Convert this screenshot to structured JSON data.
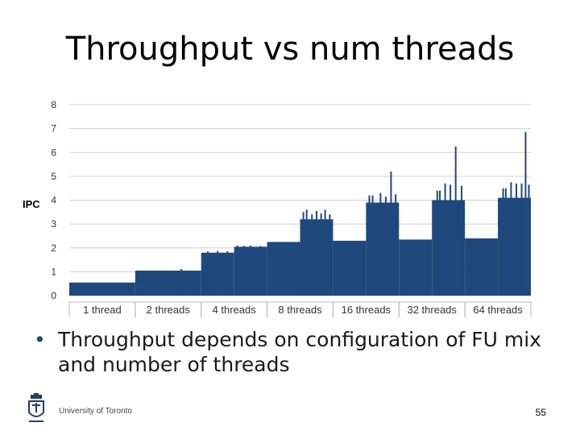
{
  "slide": {
    "title": "Throughput vs num threads",
    "bullet": "Throughput depends on configuration of FU mix and number of threads",
    "footer_org": "University of Toronto",
    "page_number": "55"
  },
  "colors": {
    "bar": "#1f497d",
    "grid": "#d0d0d0",
    "axis_text": "#333333",
    "category_border": "#b8b8b8"
  },
  "chart_data": {
    "type": "bar",
    "title": "",
    "ylabel": "IPC",
    "ylim": [
      0,
      8
    ],
    "yticks": [
      0,
      1,
      2,
      3,
      4,
      5,
      6,
      7,
      8
    ],
    "grid": true,
    "categories": [
      "1 thread",
      "2 threads",
      "4 threads",
      "8 threads",
      "16 threads",
      "32 threads",
      "64 threads"
    ],
    "series": [
      {
        "category": "1 thread",
        "segments": [
          [
            0.0,
            1.0,
            0.55
          ]
        ],
        "spikes": []
      },
      {
        "category": "2 threads",
        "segments": [
          [
            0.0,
            1.0,
            1.05
          ]
        ],
        "spikes": [
          [
            0.7,
            1.12
          ]
        ]
      },
      {
        "category": "4 threads",
        "segments": [
          [
            0.0,
            0.5,
            1.8
          ],
          [
            0.5,
            1.0,
            2.05
          ]
        ],
        "spikes": [
          [
            0.1,
            1.85
          ],
          [
            0.25,
            1.87
          ],
          [
            0.4,
            1.86
          ],
          [
            0.55,
            2.1
          ],
          [
            0.65,
            2.08
          ],
          [
            0.75,
            2.1
          ],
          [
            0.9,
            2.08
          ]
        ]
      },
      {
        "category": "8 threads",
        "segments": [
          [
            0.0,
            0.5,
            2.25
          ],
          [
            0.5,
            1.0,
            3.2
          ]
        ],
        "spikes": [
          [
            0.55,
            3.5
          ],
          [
            0.6,
            3.6
          ],
          [
            0.68,
            3.4
          ],
          [
            0.75,
            3.55
          ],
          [
            0.82,
            3.45
          ],
          [
            0.88,
            3.6
          ],
          [
            0.95,
            3.4
          ]
        ]
      },
      {
        "category": "16 threads",
        "segments": [
          [
            0.0,
            0.5,
            2.3
          ],
          [
            0.5,
            1.0,
            3.9
          ]
        ],
        "spikes": [
          [
            0.55,
            4.2
          ],
          [
            0.6,
            4.2
          ],
          [
            0.72,
            4.3
          ],
          [
            0.8,
            4.15
          ],
          [
            0.88,
            5.2
          ],
          [
            0.95,
            4.25
          ]
        ]
      },
      {
        "category": "32 threads",
        "segments": [
          [
            0.0,
            0.5,
            2.35
          ],
          [
            0.5,
            1.0,
            4.0
          ]
        ],
        "spikes": [
          [
            0.58,
            4.4
          ],
          [
            0.62,
            4.4
          ],
          [
            0.7,
            4.7
          ],
          [
            0.78,
            4.65
          ],
          [
            0.86,
            6.25
          ],
          [
            0.95,
            4.6
          ]
        ]
      },
      {
        "category": "64 threads",
        "segments": [
          [
            0.0,
            0.5,
            2.4
          ],
          [
            0.5,
            1.0,
            4.1
          ]
        ],
        "spikes": [
          [
            0.58,
            4.5
          ],
          [
            0.62,
            4.5
          ],
          [
            0.7,
            4.75
          ],
          [
            0.78,
            4.7
          ],
          [
            0.86,
            4.7
          ],
          [
            0.92,
            6.85
          ],
          [
            0.97,
            4.65
          ]
        ]
      }
    ]
  }
}
